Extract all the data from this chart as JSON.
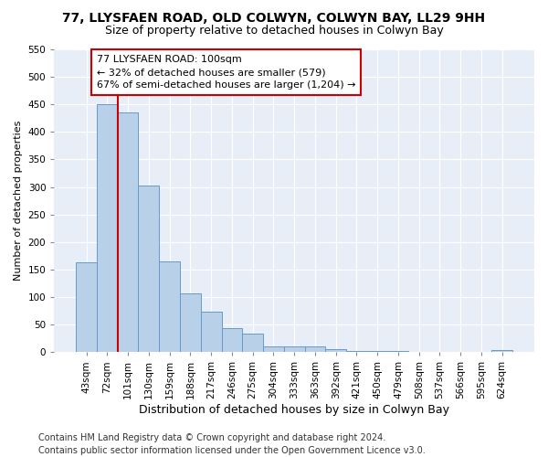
{
  "title1": "77, LLYSFAEN ROAD, OLD COLWYN, COLWYN BAY, LL29 9HH",
  "title2": "Size of property relative to detached houses in Colwyn Bay",
  "xlabel": "Distribution of detached houses by size in Colwyn Bay",
  "ylabel": "Number of detached properties",
  "categories": [
    "43sqm",
    "72sqm",
    "101sqm",
    "130sqm",
    "159sqm",
    "188sqm",
    "217sqm",
    "246sqm",
    "275sqm",
    "304sqm",
    "333sqm",
    "363sqm",
    "392sqm",
    "421sqm",
    "450sqm",
    "479sqm",
    "508sqm",
    "537sqm",
    "566sqm",
    "595sqm",
    "624sqm"
  ],
  "values": [
    163,
    450,
    435,
    303,
    165,
    106,
    73,
    44,
    33,
    10,
    10,
    10,
    5,
    2,
    2,
    2,
    1,
    1,
    1,
    1,
    4
  ],
  "bar_color": "#b8d0e8",
  "bar_edge_color": "#6699cc",
  "highlight_line_color": "#cc0000",
  "annotation_text": "77 LLYSFAEN ROAD: 100sqm\n← 32% of detached houses are smaller (579)\n67% of semi-detached houses are larger (1,204) →",
  "annotation_box_facecolor": "#ffffff",
  "annotation_box_edgecolor": "#cc0000",
  "ylim": [
    0,
    550
  ],
  "yticks": [
    0,
    50,
    100,
    150,
    200,
    250,
    300,
    350,
    400,
    450,
    500,
    550
  ],
  "footer": "Contains HM Land Registry data © Crown copyright and database right 2024.\nContains public sector information licensed under the Open Government Licence v3.0.",
  "fig_bg_color": "#ffffff",
  "plot_bg_color": "#e8eef8",
  "grid_color": "#ffffff",
  "title1_fontsize": 10,
  "title2_fontsize": 9,
  "xlabel_fontsize": 9,
  "ylabel_fontsize": 8,
  "tick_fontsize": 7.5,
  "footer_fontsize": 7,
  "annot_fontsize": 8
}
